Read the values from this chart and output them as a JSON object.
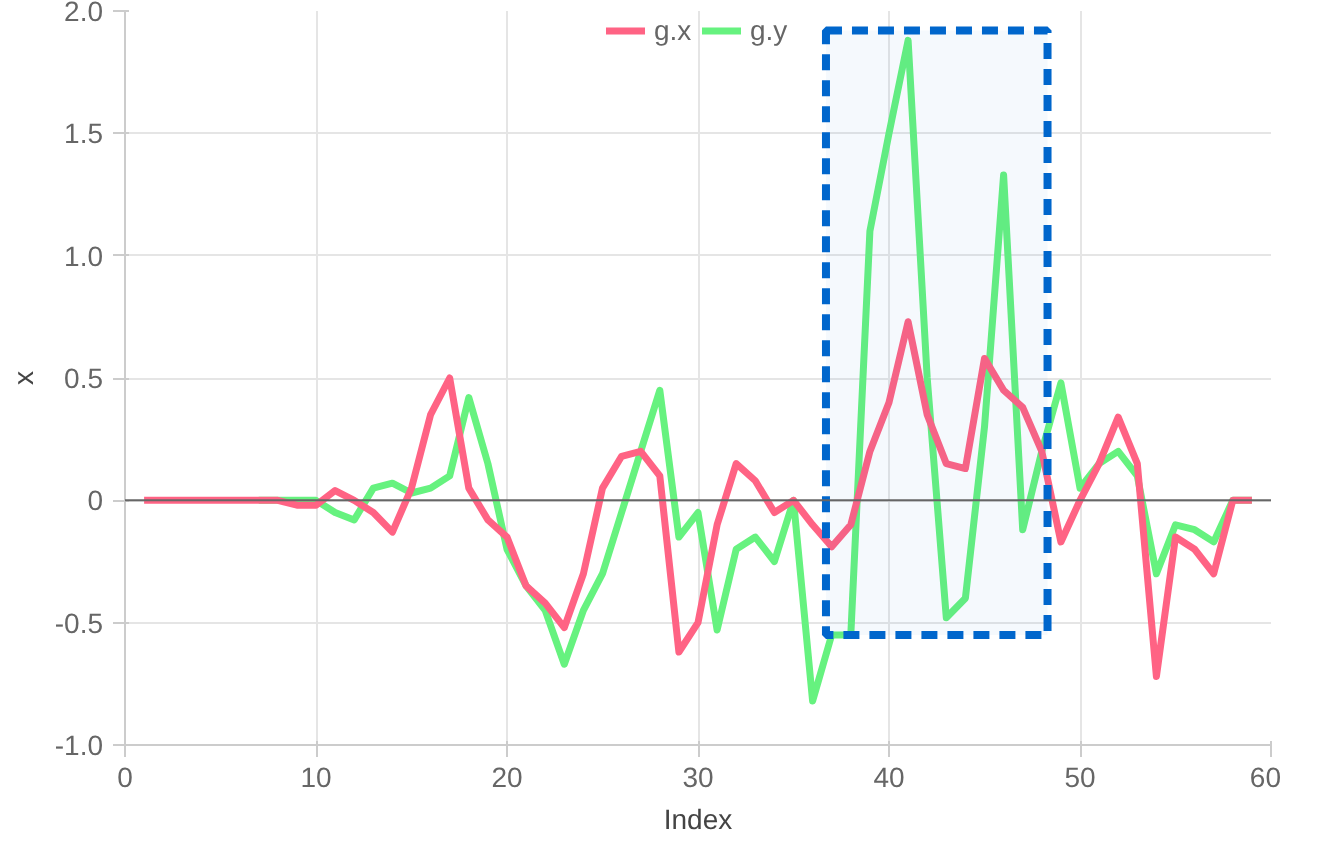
{
  "chart_data": {
    "type": "line",
    "xlabel": "Index",
    "ylabel": "x",
    "x": [
      1,
      2,
      3,
      4,
      5,
      6,
      7,
      8,
      9,
      10,
      11,
      12,
      13,
      14,
      15,
      16,
      17,
      18,
      19,
      20,
      21,
      22,
      23,
      24,
      25,
      26,
      27,
      28,
      29,
      30,
      31,
      32,
      33,
      34,
      35,
      36,
      37,
      38,
      39,
      40,
      41,
      42,
      43,
      44,
      45,
      46,
      47,
      48,
      49,
      50,
      51,
      52,
      53,
      54,
      55,
      56,
      57,
      58,
      59
    ],
    "series": [
      {
        "name": "g.x",
        "color": "#ff6384",
        "values": [
          0,
          0,
          0,
          0,
          0,
          0,
          0,
          0,
          -0.02,
          -0.02,
          0.04,
          0,
          -0.05,
          -0.13,
          0.05,
          0.35,
          0.5,
          0.05,
          -0.08,
          -0.15,
          -0.35,
          -0.42,
          -0.52,
          -0.3,
          0.05,
          0.18,
          0.2,
          0.1,
          -0.62,
          -0.5,
          -0.1,
          0.15,
          0.08,
          -0.05,
          0,
          -0.1,
          -0.19,
          -0.1,
          0.2,
          0.4,
          0.73,
          0.35,
          0.15,
          0.13,
          0.58,
          0.45,
          0.38,
          0.2,
          -0.17,
          0,
          0.15,
          0.34,
          0.15,
          -0.72,
          -0.15,
          -0.2,
          -0.3,
          0,
          0
        ]
      },
      {
        "name": "g.y",
        "color": "#66f27f",
        "values": [
          null,
          null,
          null,
          null,
          null,
          null,
          0,
          0,
          0,
          0,
          -0.05,
          -0.08,
          0.05,
          0.07,
          0.03,
          0.05,
          0.1,
          0.42,
          0.15,
          -0.2,
          -0.35,
          -0.45,
          -0.67,
          -0.45,
          -0.3,
          -0.05,
          0.2,
          0.45,
          -0.15,
          -0.05,
          -0.53,
          -0.2,
          -0.15,
          -0.25,
          0,
          -0.82,
          -0.55,
          -0.55,
          1.1,
          1.5,
          1.88,
          0.5,
          -0.48,
          -0.4,
          0.3,
          1.33,
          -0.12,
          0.2,
          0.48,
          0.05,
          0.15,
          0.2,
          0.1,
          -0.3,
          -0.1,
          -0.12,
          -0.17,
          0,
          0
        ]
      }
    ],
    "xlim": [
      0,
      60
    ],
    "xticks": [
      0,
      10,
      20,
      30,
      40,
      50,
      60
    ],
    "ylim": [
      -1.0,
      2.0
    ],
    "yticks": [
      {
        "value": -1.0,
        "label": "-1.0"
      },
      {
        "value": -0.5,
        "label": "-0.5"
      },
      0,
      {
        "value": 0.5,
        "label": "0.5"
      },
      {
        "value": 1.0,
        "label": "1.0"
      },
      {
        "value": 1.5,
        "label": "1.5"
      },
      {
        "value": 2.0,
        "label": "2.0"
      }
    ],
    "ref_lines": [
      {
        "axis": "y",
        "value": 0,
        "color": "#666666"
      }
    ],
    "bands": [
      {
        "axis": "x",
        "from": 36.7,
        "to": 48.3,
        "color": "#0066cc"
      }
    ],
    "grid": true,
    "legend": "top",
    "line_style": "solid"
  }
}
